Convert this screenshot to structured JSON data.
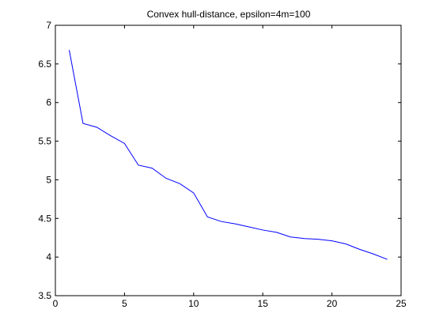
{
  "chart_data": {
    "type": "line",
    "title": "Convex hull-distance, epsilon=4m=100",
    "xlabel": "",
    "ylabel": "",
    "xlim": [
      0,
      25
    ],
    "ylim": [
      3.5,
      7
    ],
    "xticks": [
      0,
      5,
      10,
      15,
      20,
      25
    ],
    "yticks": [
      3.5,
      4,
      4.5,
      5,
      5.5,
      6,
      6.5,
      7
    ],
    "grid": false,
    "series": [
      {
        "color": "#0000ff",
        "x": [
          1,
          2,
          3,
          4,
          5,
          6,
          7,
          8,
          9,
          10,
          11,
          12,
          13,
          14,
          15,
          16,
          17,
          18,
          19,
          20,
          21,
          22,
          23,
          24
        ],
        "y": [
          6.68,
          5.73,
          5.68,
          5.57,
          5.47,
          5.19,
          5.15,
          5.02,
          4.95,
          4.83,
          4.52,
          4.46,
          4.43,
          4.39,
          4.35,
          4.32,
          4.26,
          4.24,
          4.23,
          4.21,
          4.17,
          4.1,
          4.04,
          3.97
        ]
      }
    ]
  }
}
